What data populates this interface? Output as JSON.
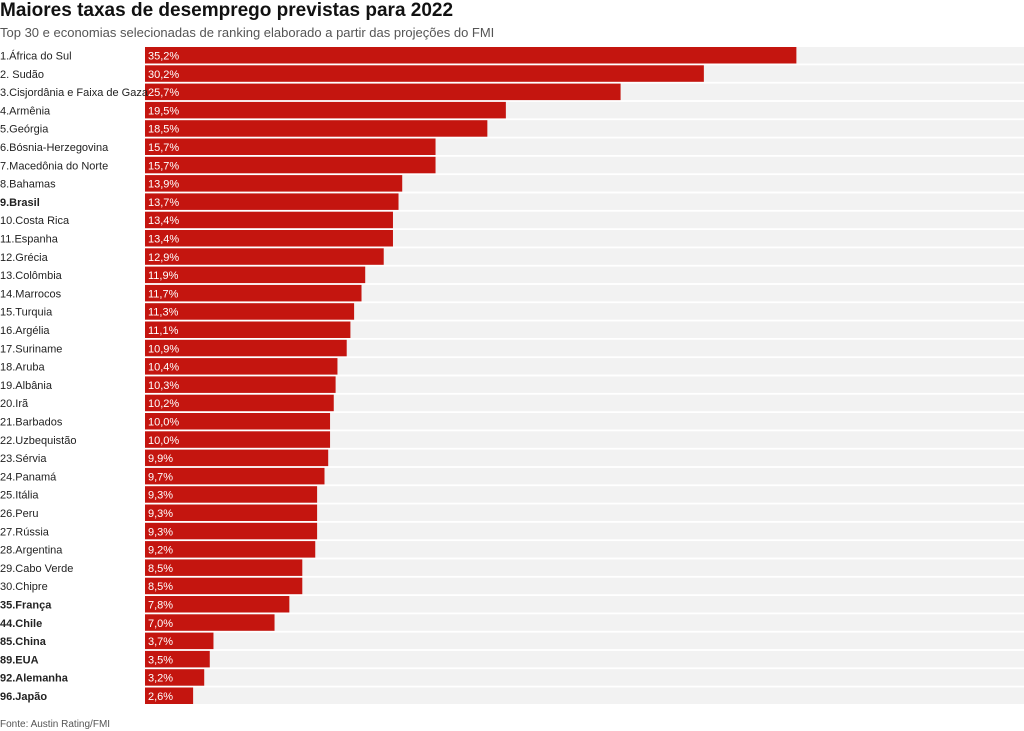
{
  "title": "Maiores taxas de desemprego previstas para 2022",
  "subtitle": "Top 30 e economias selecionadas de ranking elaborado a partir das projeções do FMI",
  "source": "Fonte: Austin Rating/FMI",
  "colors": {
    "bar": "#c4150f",
    "track": "#f2f2f2",
    "label": "#222222",
    "value_text": "#ffffff"
  },
  "chart_data": {
    "type": "bar",
    "orientation": "horizontal",
    "xlim": [
      0,
      47.5
    ],
    "grid": false,
    "categories": [
      "1.África do Sul",
      "2. Sudão",
      "3.Cisjordânia e Faixa de Gaza",
      "4.Armênia",
      "5.Geórgia",
      "6.Bósnia-Herzegovina",
      "7.Macedônia do Norte",
      "8.Bahamas",
      "9.Brasil",
      "10.Costa Rica",
      "11.Espanha",
      "12.Grécia",
      "13.Colômbia",
      "14.Marrocos",
      "15.Turquia",
      "16.Argélia",
      "17.Suriname",
      "18.Aruba",
      "19.Albânia",
      "20.Irã",
      "21.Barbados",
      "22.Uzbequistão",
      "23.Sérvia",
      "24.Panamá",
      "25.Itália",
      "26.Peru",
      "27.Rússia",
      "28.Argentina",
      "29.Cabo Verde",
      "30.Chipre",
      "35.França",
      "44.Chile",
      "85.China",
      "89.EUA",
      "92.Alemanha",
      "96.Japão"
    ],
    "values": [
      35.2,
      30.2,
      25.7,
      19.5,
      18.5,
      15.7,
      15.7,
      13.9,
      13.7,
      13.4,
      13.4,
      12.9,
      11.9,
      11.7,
      11.3,
      11.1,
      10.9,
      10.4,
      10.3,
      10.2,
      10.0,
      10.0,
      9.9,
      9.7,
      9.3,
      9.3,
      9.3,
      9.2,
      8.5,
      8.5,
      7.8,
      7.0,
      3.7,
      3.5,
      3.2,
      2.6
    ],
    "value_labels": [
      "35,2%",
      "30,2%",
      "25,7%",
      "19,5%",
      "18,5%",
      "15,7%",
      "15,7%",
      "13,9%",
      "13,7%",
      "13,4%",
      "13,4%",
      "12,9%",
      "11,9%",
      "11,7%",
      "11,3%",
      "11,1%",
      "10,9%",
      "10,4%",
      "10,3%",
      "10,2%",
      "10,0%",
      "10,0%",
      "9,9%",
      "9,7%",
      "9,3%",
      "9,3%",
      "9,3%",
      "9,2%",
      "8,5%",
      "8,5%",
      "7,8%",
      "7,0%",
      "3,7%",
      "3,5%",
      "3,2%",
      "2,6%"
    ],
    "bold_categories": [
      "9.Brasil",
      "35.França",
      "44.Chile",
      "85.China",
      "89.EUA",
      "92.Alemanha",
      "96.Japão"
    ]
  }
}
